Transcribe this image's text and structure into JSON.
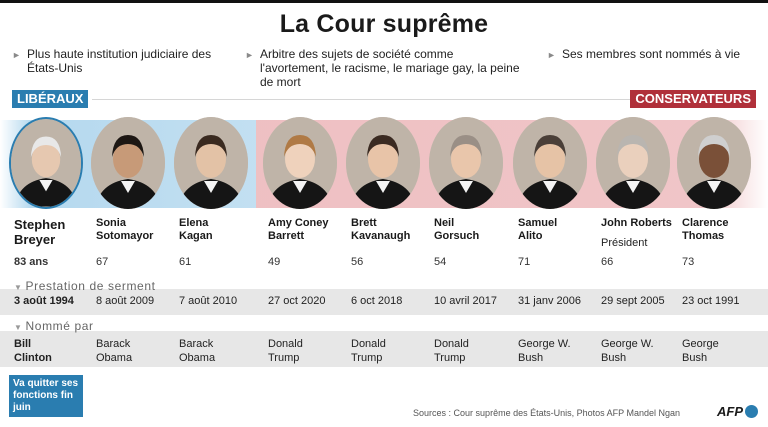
{
  "title": "La Cour suprême",
  "bullets": [
    "Plus haute institution judiciaire des États-Unis",
    "Arbitre des sujets de société comme l'avortement, le racisme, le mariage gay, la peine de mort",
    "Ses membres sont nommés à vie"
  ],
  "groups": {
    "liberal": "LIBÉRAUX",
    "conservative": "CONSERVATEURS"
  },
  "colors": {
    "liberal": "#2a7db0",
    "conservative": "#b0303a"
  },
  "sections": {
    "oath": "Prestation de serment",
    "appointed": "Nommé par"
  },
  "justices": [
    {
      "first": "Stephen",
      "last": "Breyer",
      "role": "",
      "age": "83 ans",
      "oath": "3 août 1994",
      "president_first": "Bill",
      "president_last": "Clinton"
    },
    {
      "first": "Sonia",
      "last": "Sotomayor",
      "role": "",
      "age": "67",
      "oath": "8 août 2009",
      "president_first": "Barack",
      "president_last": "Obama"
    },
    {
      "first": "Elena",
      "last": "Kagan",
      "role": "",
      "age": "61",
      "oath": "7 août 2010",
      "president_first": "Barack",
      "president_last": "Obama"
    },
    {
      "first": "Amy Coney",
      "last": "Barrett",
      "role": "",
      "age": "49",
      "oath": "27 oct 2020",
      "president_first": "Donald",
      "president_last": "Trump"
    },
    {
      "first": "Brett",
      "last": "Kavanaugh",
      "role": "",
      "age": "56",
      "oath": "6 oct 2018",
      "president_first": "Donald",
      "president_last": "Trump"
    },
    {
      "first": "Neil",
      "last": "Gorsuch",
      "role": "",
      "age": "54",
      "oath": "10 avril 2017",
      "president_first": "Donald",
      "president_last": "Trump"
    },
    {
      "first": "Samuel",
      "last": "Alito",
      "role": "",
      "age": "71",
      "oath": "31 janv 2006",
      "president_first": "George W.",
      "president_last": "Bush"
    },
    {
      "first": "John Roberts",
      "last": "",
      "role": "Président",
      "age": "66",
      "oath": "29 sept 2005",
      "president_first": "George W.",
      "president_last": "Bush"
    },
    {
      "first": "Clarence",
      "last": "Thomas",
      "role": "",
      "age": "73",
      "oath": "23 oct 1991",
      "president_first": "George",
      "president_last": "Bush"
    }
  ],
  "leaving_note": "Va quitter ses fonctions fin juin",
  "sources": "Sources : Cour suprême des États-Unis, Photos AFP Mandel Ngan",
  "logo_text": "AFP"
}
